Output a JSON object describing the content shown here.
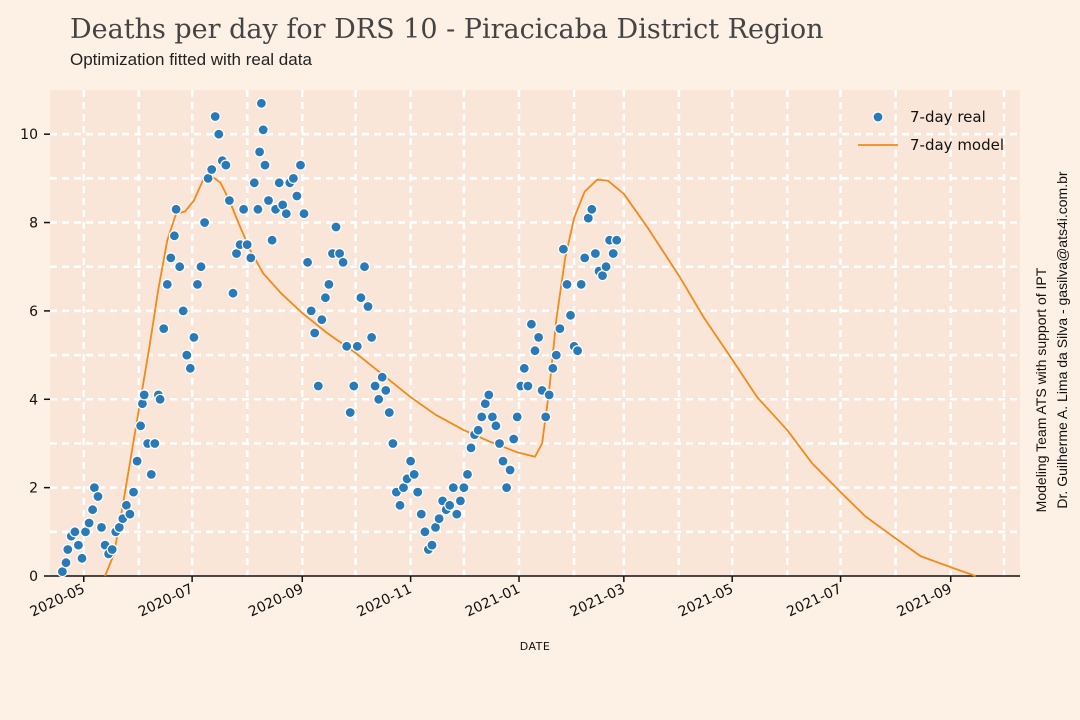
{
  "title": "Deaths per day for DRS 10 - Piracicaba District Region",
  "subtitle": "Optimization fitted with real data",
  "credits": {
    "line1": "Modeling Team ATS with support of IPT",
    "line2": "Dr. Guilherme A. Lima da Silva - gasilva@ats4i.com.br"
  },
  "colors": {
    "background": "#fdf1e6",
    "plot_area": "#f9e6d9",
    "grid": "#ffffff",
    "real": "#2a7ab8",
    "model": "#f28a1a"
  },
  "chart_data": {
    "type": "scatter",
    "title": "Deaths per day for DRS 10 - Piracicaba District Region",
    "subtitle": "Optimization fitted with real data",
    "xlabel": "DATE",
    "ylabel": "",
    "xlim": [
      "2020-04-12",
      "2021-10-10"
    ],
    "ylim": [
      0,
      11
    ],
    "grid": true,
    "legend_position": "top-right",
    "x_ticks": [
      "2020-05",
      "2020-07",
      "2020-09",
      "2020-11",
      "2021-01",
      "2021-03",
      "2021-05",
      "2021-07",
      "2021-09"
    ],
    "y_ticks": [
      0,
      2,
      4,
      6,
      8,
      10
    ],
    "series": [
      {
        "name": "7-day real",
        "kind": "scatter",
        "points": [
          [
            "2020-04-19",
            0.1
          ],
          [
            "2020-04-21",
            0.3
          ],
          [
            "2020-04-22",
            0.6
          ],
          [
            "2020-04-24",
            0.9
          ],
          [
            "2020-04-26",
            1.0
          ],
          [
            "2020-04-28",
            0.7
          ],
          [
            "2020-04-30",
            0.4
          ],
          [
            "2020-05-02",
            1.0
          ],
          [
            "2020-05-04",
            1.2
          ],
          [
            "2020-05-06",
            1.5
          ],
          [
            "2020-05-07",
            2.0
          ],
          [
            "2020-05-09",
            1.8
          ],
          [
            "2020-05-11",
            1.1
          ],
          [
            "2020-05-13",
            0.7
          ],
          [
            "2020-05-15",
            0.5
          ],
          [
            "2020-05-17",
            0.6
          ],
          [
            "2020-05-19",
            1.0
          ],
          [
            "2020-05-21",
            1.1
          ],
          [
            "2020-05-23",
            1.3
          ],
          [
            "2020-05-25",
            1.6
          ],
          [
            "2020-05-27",
            1.4
          ],
          [
            "2020-05-29",
            1.9
          ],
          [
            "2020-05-31",
            2.6
          ],
          [
            "2020-06-02",
            3.4
          ],
          [
            "2020-06-03",
            3.9
          ],
          [
            "2020-06-04",
            4.1
          ],
          [
            "2020-06-06",
            3.0
          ],
          [
            "2020-06-08",
            2.3
          ],
          [
            "2020-06-10",
            3.0
          ],
          [
            "2020-06-12",
            4.1
          ],
          [
            "2020-06-13",
            4.0
          ],
          [
            "2020-06-15",
            5.6
          ],
          [
            "2020-06-17",
            6.6
          ],
          [
            "2020-06-19",
            7.2
          ],
          [
            "2020-06-21",
            7.7
          ],
          [
            "2020-06-22",
            8.3
          ],
          [
            "2020-06-24",
            7.0
          ],
          [
            "2020-06-26",
            6.0
          ],
          [
            "2020-06-28",
            5.0
          ],
          [
            "2020-06-30",
            4.7
          ],
          [
            "2020-07-02",
            5.4
          ],
          [
            "2020-07-04",
            6.6
          ],
          [
            "2020-07-06",
            7.0
          ],
          [
            "2020-07-08",
            8.0
          ],
          [
            "2020-07-10",
            9.0
          ],
          [
            "2020-07-12",
            9.2
          ],
          [
            "2020-07-14",
            10.4
          ],
          [
            "2020-07-16",
            10.0
          ],
          [
            "2020-07-18",
            9.4
          ],
          [
            "2020-07-20",
            9.3
          ],
          [
            "2020-07-22",
            8.5
          ],
          [
            "2020-07-24",
            6.4
          ],
          [
            "2020-07-26",
            7.3
          ],
          [
            "2020-07-28",
            7.5
          ],
          [
            "2020-07-30",
            8.3
          ],
          [
            "2020-08-01",
            7.5
          ],
          [
            "2020-08-03",
            7.2
          ],
          [
            "2020-08-05",
            8.9
          ],
          [
            "2020-08-07",
            8.3
          ],
          [
            "2020-08-08",
            9.6
          ],
          [
            "2020-08-09",
            10.7
          ],
          [
            "2020-08-10",
            10.1
          ],
          [
            "2020-08-11",
            9.3
          ],
          [
            "2020-08-13",
            8.5
          ],
          [
            "2020-08-15",
            7.6
          ],
          [
            "2020-08-17",
            8.3
          ],
          [
            "2020-08-19",
            8.9
          ],
          [
            "2020-08-21",
            8.4
          ],
          [
            "2020-08-23",
            8.2
          ],
          [
            "2020-08-25",
            8.9
          ],
          [
            "2020-08-27",
            9.0
          ],
          [
            "2020-08-29",
            8.6
          ],
          [
            "2020-08-31",
            9.3
          ],
          [
            "2020-09-02",
            8.2
          ],
          [
            "2020-09-04",
            7.1
          ],
          [
            "2020-09-06",
            6.0
          ],
          [
            "2020-09-08",
            5.5
          ],
          [
            "2020-09-10",
            4.3
          ],
          [
            "2020-09-12",
            5.8
          ],
          [
            "2020-09-14",
            6.3
          ],
          [
            "2020-09-16",
            6.6
          ],
          [
            "2020-09-18",
            7.3
          ],
          [
            "2020-09-20",
            7.9
          ],
          [
            "2020-09-22",
            7.3
          ],
          [
            "2020-09-24",
            7.1
          ],
          [
            "2020-09-26",
            5.2
          ],
          [
            "2020-09-28",
            3.7
          ],
          [
            "2020-09-30",
            4.3
          ],
          [
            "2020-10-02",
            5.2
          ],
          [
            "2020-10-04",
            6.3
          ],
          [
            "2020-10-06",
            7.0
          ],
          [
            "2020-10-08",
            6.1
          ],
          [
            "2020-10-10",
            5.4
          ],
          [
            "2020-10-12",
            4.3
          ],
          [
            "2020-10-14",
            4.0
          ],
          [
            "2020-10-16",
            4.5
          ],
          [
            "2020-10-18",
            4.2
          ],
          [
            "2020-10-20",
            3.7
          ],
          [
            "2020-10-22",
            3.0
          ],
          [
            "2020-10-24",
            1.9
          ],
          [
            "2020-10-26",
            1.6
          ],
          [
            "2020-10-28",
            2.0
          ],
          [
            "2020-10-30",
            2.2
          ],
          [
            "2020-11-01",
            2.6
          ],
          [
            "2020-11-03",
            2.3
          ],
          [
            "2020-11-05",
            1.9
          ],
          [
            "2020-11-07",
            1.4
          ],
          [
            "2020-11-09",
            1.0
          ],
          [
            "2020-11-11",
            0.6
          ],
          [
            "2020-11-13",
            0.7
          ],
          [
            "2020-11-15",
            1.1
          ],
          [
            "2020-11-17",
            1.3
          ],
          [
            "2020-11-19",
            1.7
          ],
          [
            "2020-11-21",
            1.5
          ],
          [
            "2020-11-23",
            1.6
          ],
          [
            "2020-11-25",
            2.0
          ],
          [
            "2020-11-27",
            1.4
          ],
          [
            "2020-11-29",
            1.7
          ],
          [
            "2020-12-01",
            2.0
          ],
          [
            "2020-12-03",
            2.3
          ],
          [
            "2020-12-05",
            2.9
          ],
          [
            "2020-12-07",
            3.2
          ],
          [
            "2020-12-09",
            3.3
          ],
          [
            "2020-12-11",
            3.6
          ],
          [
            "2020-12-13",
            3.9
          ],
          [
            "2020-12-15",
            4.1
          ],
          [
            "2020-12-17",
            3.6
          ],
          [
            "2020-12-19",
            3.4
          ],
          [
            "2020-12-21",
            3.0
          ],
          [
            "2020-12-23",
            2.6
          ],
          [
            "2020-12-25",
            2.0
          ],
          [
            "2020-12-27",
            2.4
          ],
          [
            "2020-12-29",
            3.1
          ],
          [
            "2020-12-31",
            3.6
          ],
          [
            "2021-01-02",
            4.3
          ],
          [
            "2021-01-04",
            4.7
          ],
          [
            "2021-01-06",
            4.3
          ],
          [
            "2021-01-08",
            5.7
          ],
          [
            "2021-01-10",
            5.1
          ],
          [
            "2021-01-12",
            5.4
          ],
          [
            "2021-01-14",
            4.2
          ],
          [
            "2021-01-16",
            3.6
          ],
          [
            "2021-01-18",
            4.1
          ],
          [
            "2021-01-20",
            4.7
          ],
          [
            "2021-01-22",
            5.0
          ],
          [
            "2021-01-24",
            5.6
          ],
          [
            "2021-01-26",
            7.4
          ],
          [
            "2021-01-28",
            6.6
          ],
          [
            "2021-01-30",
            5.9
          ],
          [
            "2021-02-01",
            5.2
          ],
          [
            "2021-02-03",
            5.1
          ],
          [
            "2021-02-05",
            6.6
          ],
          [
            "2021-02-07",
            7.2
          ],
          [
            "2021-02-09",
            8.1
          ],
          [
            "2021-02-11",
            8.3
          ],
          [
            "2021-02-13",
            7.3
          ],
          [
            "2021-02-15",
            6.9
          ],
          [
            "2021-02-17",
            6.8
          ],
          [
            "2021-02-19",
            7.0
          ],
          [
            "2021-02-21",
            7.6
          ],
          [
            "2021-02-23",
            7.3
          ],
          [
            "2021-02-25",
            7.6
          ]
        ]
      },
      {
        "name": "7-day model",
        "kind": "line",
        "points": [
          [
            "2020-05-13",
            0.0
          ],
          [
            "2020-05-18",
            0.5
          ],
          [
            "2020-05-23",
            1.6
          ],
          [
            "2020-05-28",
            2.8
          ],
          [
            "2020-06-02",
            4.0
          ],
          [
            "2020-06-07",
            5.2
          ],
          [
            "2020-06-12",
            6.5
          ],
          [
            "2020-06-17",
            7.6
          ],
          [
            "2020-06-22",
            8.2
          ],
          [
            "2020-06-27",
            8.25
          ],
          [
            "2020-07-02",
            8.5
          ],
          [
            "2020-07-07",
            8.95
          ],
          [
            "2020-07-12",
            9.05
          ],
          [
            "2020-07-17",
            8.9
          ],
          [
            "2020-07-22",
            8.5
          ],
          [
            "2020-07-27",
            8.0
          ],
          [
            "2020-08-03",
            7.35
          ],
          [
            "2020-08-10",
            6.85
          ],
          [
            "2020-08-20",
            6.4
          ],
          [
            "2020-09-01",
            5.95
          ],
          [
            "2020-09-15",
            5.5
          ],
          [
            "2020-10-01",
            5.05
          ],
          [
            "2020-10-15",
            4.6
          ],
          [
            "2020-11-01",
            4.05
          ],
          [
            "2020-11-15",
            3.65
          ],
          [
            "2020-12-01",
            3.3
          ],
          [
            "2020-12-15",
            3.05
          ],
          [
            "2020-12-31",
            2.8
          ],
          [
            "2021-01-10",
            2.7
          ],
          [
            "2021-01-14",
            3.0
          ],
          [
            "2021-01-18",
            4.2
          ],
          [
            "2021-01-22",
            5.8
          ],
          [
            "2021-01-27",
            7.2
          ],
          [
            "2021-02-01",
            8.1
          ],
          [
            "2021-02-07",
            8.7
          ],
          [
            "2021-02-14",
            8.97
          ],
          [
            "2021-02-20",
            8.95
          ],
          [
            "2021-03-01",
            8.65
          ],
          [
            "2021-03-15",
            7.85
          ],
          [
            "2021-04-01",
            6.8
          ],
          [
            "2021-04-15",
            5.85
          ],
          [
            "2021-05-01",
            4.9
          ],
          [
            "2021-05-15",
            4.05
          ],
          [
            "2021-06-01",
            3.3
          ],
          [
            "2021-06-15",
            2.55
          ],
          [
            "2021-07-01",
            1.9
          ],
          [
            "2021-07-15",
            1.35
          ],
          [
            "2021-08-01",
            0.85
          ],
          [
            "2021-08-15",
            0.45
          ],
          [
            "2021-09-01",
            0.2
          ],
          [
            "2021-09-15",
            0.0
          ]
        ]
      }
    ]
  }
}
